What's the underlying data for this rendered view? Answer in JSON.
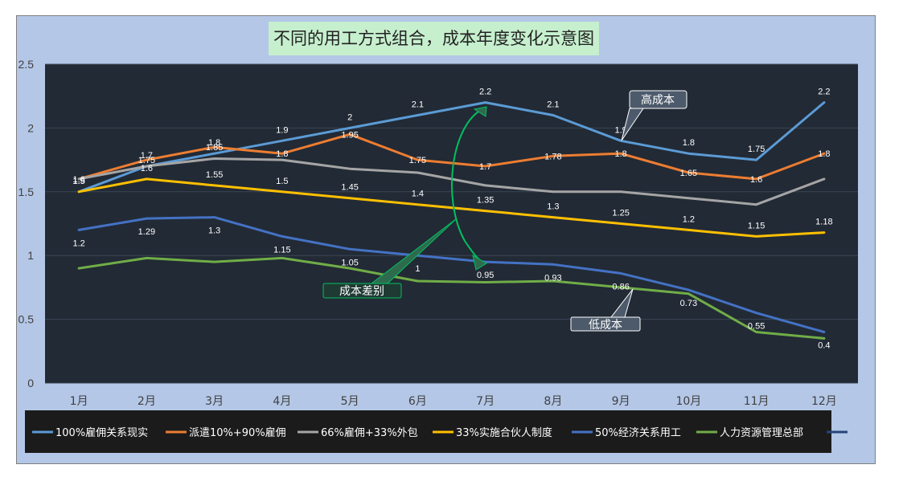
{
  "chart_data": {
    "type": "line",
    "title": "不同的用工方式组合，成本年度变化示意图",
    "categories": [
      "1月",
      "2月",
      "3月",
      "4月",
      "5月",
      "6月",
      "7月",
      "8月",
      "9月",
      "10月",
      "11月",
      "12月"
    ],
    "ylim": [
      0,
      2.5
    ],
    "yticks": [
      "0",
      "0.5",
      "1",
      "1.5",
      "2",
      "2.5"
    ],
    "grid": true,
    "legend_position": "bottom",
    "series": [
      {
        "name": "100%雇佣关系现实",
        "color": "#5b9bd5",
        "values": [
          1.5,
          1.7,
          1.8,
          1.9,
          2,
          2.1,
          2.2,
          2.1,
          1.9,
          1.8,
          1.75,
          2.2
        ],
        "labels": [
          "1.5",
          "1.7",
          "1.8",
          "1.9",
          "2",
          "2.1",
          "2.2",
          "2.1",
          "1.9",
          "1.8",
          "1.75",
          "2.2"
        ],
        "label_pos": "above"
      },
      {
        "name": "派遣10%+90%雇佣",
        "color": "#ed7d31",
        "values": [
          1.6,
          1.75,
          1.85,
          1.8,
          1.95,
          1.75,
          1.7,
          1.78,
          1.8,
          1.65,
          1.6,
          1.8
        ],
        "labels": [
          "1.6",
          "1.75",
          "1.85",
          "1.8",
          "1.95",
          "1.75",
          "1.7",
          "1.78",
          "1.8",
          "1.65",
          "1.6",
          "1.8"
        ],
        "label_pos": "center"
      },
      {
        "name": "66%雇佣+33%外包",
        "color": "#a5a5a5",
        "values": [
          1.6,
          1.7,
          1.76,
          1.75,
          1.68,
          1.65,
          1.55,
          1.5,
          1.5,
          1.45,
          1.4,
          1.6
        ],
        "labels": [],
        "label_pos": "above"
      },
      {
        "name": "33%实施合伙人制度",
        "color": "#ffc000",
        "values": [
          1.5,
          1.6,
          1.55,
          1.5,
          1.45,
          1.4,
          1.35,
          1.3,
          1.25,
          1.2,
          1.15,
          1.18
        ],
        "labels": [
          "1.5",
          "1.6",
          "1.55",
          "1.5",
          "1.45",
          "1.4",
          "1.35",
          "1.3",
          "1.25",
          "1.2",
          "1.15",
          "1.18"
        ],
        "label_pos": "above"
      },
      {
        "name": "50%经济关系用工",
        "color": "#4472c4",
        "values": [
          1.2,
          1.29,
          1.3,
          1.15,
          1.05,
          1,
          0.95,
          0.93,
          0.86,
          0.73,
          0.55,
          0.4
        ],
        "labels": [
          "1.2",
          "1.29",
          "1.3",
          "1.15",
          "1.05",
          "1",
          "0.95",
          "0.93",
          "0.86",
          "0.73",
          "0.55",
          "0.4"
        ],
        "label_pos": "below"
      },
      {
        "name": "人力资源管理总部",
        "color": "#70ad47",
        "values": [
          0.9,
          0.98,
          0.95,
          0.98,
          0.9,
          0.8,
          0.79,
          0.8,
          0.75,
          0.7,
          0.4,
          0.35
        ],
        "labels": [],
        "label_pos": "above"
      }
    ],
    "annotations": {
      "high_cost": "高成本",
      "low_cost": "低成本",
      "cost_gap": "成本差别"
    }
  }
}
